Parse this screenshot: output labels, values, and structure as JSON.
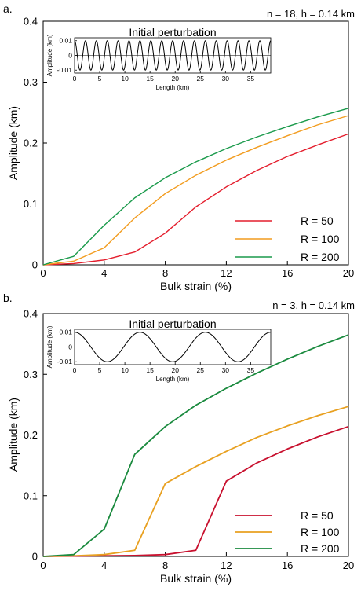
{
  "chart_data": [
    {
      "type": "line",
      "panel_label": "a.",
      "annotation": "n = 18, h = 0.14 km",
      "xlabel": "Bulk strain (%)",
      "ylabel": "Amplitude (km)",
      "xlim": [
        0,
        20
      ],
      "ylim": [
        0,
        0.4
      ],
      "x_ticks": [
        "0",
        "4",
        "8",
        "12",
        "16",
        "20"
      ],
      "y_ticks": [
        "0",
        "0.1",
        "0.2",
        "0.3",
        "0.4"
      ],
      "x": [
        0,
        2,
        4,
        6,
        8,
        10,
        12,
        14,
        16,
        18,
        20
      ],
      "series": [
        {
          "name": "R = 50",
          "color": "#e41e2d",
          "values": [
            0,
            0.002,
            0.008,
            0.021,
            0.052,
            0.095,
            0.128,
            0.155,
            0.178,
            0.197,
            0.215
          ]
        },
        {
          "name": "R = 100",
          "color": "#f29c1f",
          "values": [
            0,
            0.006,
            0.028,
            0.077,
            0.117,
            0.147,
            0.172,
            0.193,
            0.212,
            0.23,
            0.245
          ]
        },
        {
          "name": "R = 200",
          "color": "#1a9a4b",
          "values": [
            0,
            0.014,
            0.065,
            0.11,
            0.143,
            0.169,
            0.191,
            0.21,
            0.227,
            0.243,
            0.257
          ]
        }
      ],
      "legend_position": "bottom-right",
      "inset": {
        "title": "Initial perturbation",
        "xlabel": "Length (km)",
        "ylabel": "Amplitude (km)",
        "xlim": [
          0,
          39
        ],
        "ylim": [
          -0.012,
          0.012
        ],
        "x_ticks": [
          "0",
          "5",
          "10",
          "15",
          "20",
          "25",
          "30",
          "35"
        ],
        "y_ticks": [
          "0.01",
          "0",
          "-0.01"
        ],
        "wave": {
          "amplitude": 0.01,
          "wavelength_km": 2.1667,
          "count": 18
        }
      }
    },
    {
      "type": "line",
      "panel_label": "b.",
      "annotation": "n = 3, h = 0.14 km",
      "xlabel": "Bulk strain (%)",
      "ylabel": "Amplitude (km)",
      "xlim": [
        0,
        20
      ],
      "ylim": [
        0,
        0.4
      ],
      "x_ticks": [
        "0",
        "4",
        "8",
        "12",
        "16",
        "20"
      ],
      "y_ticks": [
        "0",
        "0.1",
        "0.2",
        "0.3",
        "0.4"
      ],
      "x": [
        0,
        2,
        4,
        6,
        8,
        10,
        12,
        14,
        16,
        18,
        20
      ],
      "series": [
        {
          "name": "R = 50",
          "color": "#c8102e",
          "values": [
            0,
            0.0005,
            0.001,
            0.0015,
            0.003,
            0.01,
            0.124,
            0.154,
            0.177,
            0.197,
            0.214
          ]
        },
        {
          "name": "R = 100",
          "color": "#e8a020",
          "values": [
            0,
            0.001,
            0.003,
            0.01,
            0.12,
            0.148,
            0.173,
            0.196,
            0.215,
            0.232,
            0.247
          ]
        },
        {
          "name": "R = 200",
          "color": "#1a8a3e",
          "values": [
            0,
            0.003,
            0.045,
            0.168,
            0.214,
            0.249,
            0.277,
            0.302,
            0.325,
            0.346,
            0.365
          ]
        }
      ],
      "legend_position": "bottom-right",
      "inset": {
        "title": "Initial perturbation",
        "xlabel": "Length (km)",
        "ylabel": "Amplitude (km)",
        "xlim": [
          0,
          39
        ],
        "ylim": [
          -0.012,
          0.012
        ],
        "x_ticks": [
          "0",
          "5",
          "10",
          "15",
          "20",
          "25",
          "30",
          "35"
        ],
        "y_ticks": [
          "0.01",
          "0",
          "-0.01"
        ],
        "wave": {
          "amplitude": 0.01,
          "wavelength_km": 13,
          "count": 3
        }
      }
    }
  ]
}
